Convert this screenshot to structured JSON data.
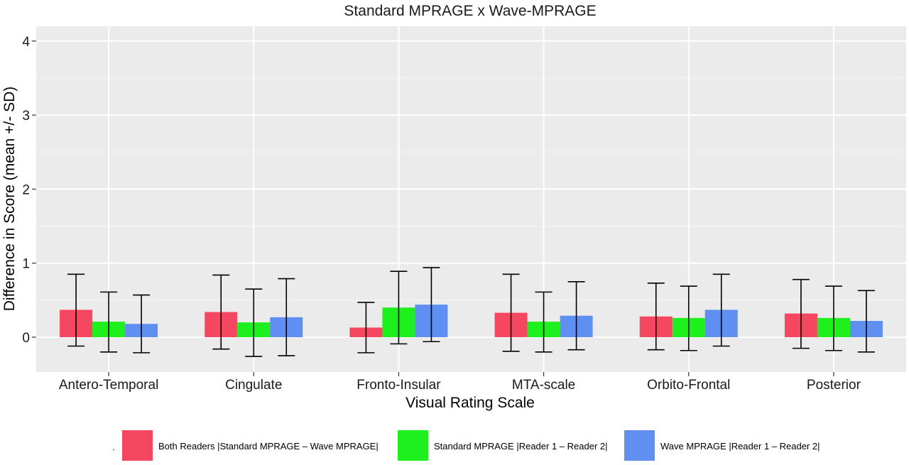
{
  "chart_data": {
    "type": "bar",
    "title": "Standard MPRAGE x Wave-MPRAGE",
    "xlabel": "Visual Rating Scale",
    "ylabel": "Difference in Score (mean +/- SD)",
    "ylim": [
      -0.47,
      4.2
    ],
    "yticks": [
      0,
      1,
      2,
      3,
      4
    ],
    "grid": true,
    "legend_position": "bottom",
    "legend_title": ".",
    "categories": [
      "Antero-Temporal",
      "Cingulate",
      "Fronto-Insular",
      "MTA-scale",
      "Orbito-Frontal",
      "Posterior"
    ],
    "series": [
      {
        "name": "Both Readers |Standard MPRAGE – Wave MPRAGE|",
        "color": "#f5475f",
        "values": [
          0.37,
          0.34,
          0.13,
          0.33,
          0.28,
          0.32
        ],
        "err_low": [
          -0.12,
          -0.16,
          -0.21,
          -0.19,
          -0.17,
          -0.15
        ],
        "err_high": [
          0.85,
          0.84,
          0.47,
          0.85,
          0.73,
          0.78
        ]
      },
      {
        "name": "Standard MPRAGE |Reader 1 – Reader 2|",
        "color": "#1df01d",
        "values": [
          0.21,
          0.2,
          0.4,
          0.21,
          0.26,
          0.26
        ],
        "err_low": [
          -0.2,
          -0.26,
          -0.09,
          -0.2,
          -0.18,
          -0.18
        ],
        "err_high": [
          0.61,
          0.65,
          0.89,
          0.61,
          0.69,
          0.69
        ]
      },
      {
        "name": "Wave MPRAGE |Reader 1 – Reader 2|",
        "color": "#5f8ff0",
        "values": [
          0.18,
          0.27,
          0.44,
          0.29,
          0.37,
          0.22
        ],
        "err_low": [
          -0.21,
          -0.25,
          -0.06,
          -0.17,
          -0.12,
          -0.2
        ],
        "err_high": [
          0.57,
          0.79,
          0.94,
          0.75,
          0.85,
          0.63
        ]
      }
    ]
  }
}
